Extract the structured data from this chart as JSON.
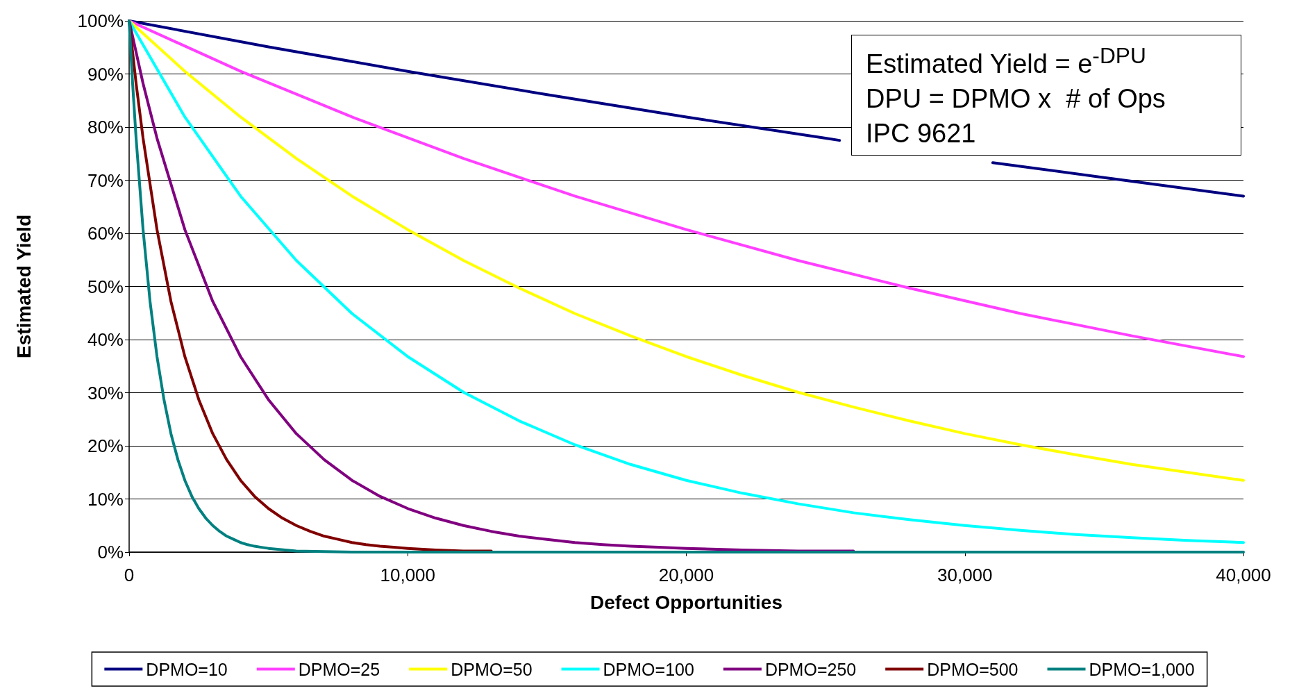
{
  "chart_data": {
    "type": "line",
    "xlabel": "Defect Opportunities",
    "ylabel": "Estimated Yield",
    "xlim": [
      0,
      40000
    ],
    "ylim": [
      0,
      100
    ],
    "xticks": [
      0,
      {
        "value": 10000,
        "label": "10,000"
      },
      {
        "value": 20000,
        "label": "20,000"
      },
      {
        "value": 30000,
        "label": "30,000"
      },
      {
        "value": 40000,
        "label": "40,000"
      }
    ],
    "yticks": [
      {
        "value": 0,
        "label": "0%"
      },
      {
        "value": 10,
        "label": "10%"
      },
      {
        "value": 20,
        "label": "20%"
      },
      {
        "value": 30,
        "label": "30%"
      },
      {
        "value": 40,
        "label": "40%"
      },
      {
        "value": 50,
        "label": "50%"
      },
      {
        "value": 60,
        "label": "60%"
      },
      {
        "value": 70,
        "label": "70%"
      },
      {
        "value": 80,
        "label": "80%"
      },
      {
        "value": 90,
        "label": "90%"
      },
      {
        "value": 100,
        "label": "100%"
      }
    ],
    "grid": "y",
    "legend": "bottom",
    "marker": "none",
    "annotations": [
      "Estimated Yield = e$^{-DPU}$",
      "DPU = DPMO x  # of Ops",
      "IPC 9621"
    ],
    "series": [
      {
        "name": "DPMO=10",
        "color": "#000080",
        "x": [
          0,
          5000,
          10000,
          15000,
          20000,
          25000,
          25500,
          28000,
          31000,
          35000,
          40000
        ],
        "values": [
          100,
          95.1,
          90.5,
          86.1,
          81.9,
          77.9,
          77.5,
          null,
          73.3,
          70.5,
          67.0
        ]
      },
      {
        "name": "DPMO=25",
        "color": "#ff40ff",
        "x": [
          0,
          4000,
          8000,
          12000,
          16000,
          20000,
          24000,
          28000,
          32000,
          36000,
          40000
        ],
        "values": [
          100,
          90.5,
          81.9,
          74.1,
          67.0,
          60.7,
          54.9,
          49.7,
          44.9,
          40.7,
          36.8
        ]
      },
      {
        "name": "DPMO=50",
        "color": "#ffff00",
        "x": [
          0,
          2000,
          4000,
          6000,
          8000,
          10000,
          12000,
          14000,
          16000,
          18000,
          20000,
          22000,
          24000,
          26000,
          28000,
          30000,
          32000,
          34000,
          36000,
          38000,
          40000
        ],
        "values": [
          100,
          90.5,
          81.9,
          74.1,
          67.0,
          60.7,
          54.9,
          49.7,
          44.9,
          40.7,
          36.8,
          33.3,
          30.1,
          27.3,
          24.7,
          22.3,
          20.2,
          18.3,
          16.5,
          15.0,
          13.5
        ]
      },
      {
        "name": "DPMO=100",
        "color": "#00ffff",
        "x": [
          0,
          2000,
          4000,
          6000,
          8000,
          10000,
          12000,
          14000,
          16000,
          18000,
          20000,
          22000,
          24000,
          26000,
          28000,
          30000,
          32000,
          34000,
          36000,
          38000,
          40000
        ],
        "values": [
          100,
          81.9,
          67.0,
          54.9,
          44.9,
          36.8,
          30.1,
          24.7,
          20.2,
          16.5,
          13.5,
          11.1,
          9.1,
          7.4,
          6.1,
          5.0,
          4.1,
          3.3,
          2.7,
          2.2,
          1.8
        ]
      },
      {
        "name": "DPMO=250",
        "color": "#800080",
        "x": [
          0,
          500,
          1000,
          2000,
          3000,
          4000,
          5000,
          6000,
          7000,
          8000,
          9000,
          10000,
          11000,
          12000,
          13000,
          14000,
          15000,
          16000,
          17000,
          18000,
          19000,
          20000,
          22000,
          24000,
          26000
        ],
        "values": [
          100,
          88.2,
          77.9,
          60.7,
          47.2,
          36.8,
          28.7,
          22.3,
          17.4,
          13.5,
          10.5,
          8.2,
          6.4,
          5.0,
          3.9,
          3.0,
          2.4,
          1.8,
          1.4,
          1.1,
          0.9,
          0.7,
          0.4,
          0.2,
          0.2
        ]
      },
      {
        "name": "DPMO=500",
        "color": "#800000",
        "x": [
          0,
          250,
          500,
          1000,
          1500,
          2000,
          2500,
          3000,
          3500,
          4000,
          4500,
          5000,
          5500,
          6000,
          6500,
          7000,
          7500,
          8000,
          8500,
          9000,
          9500,
          10000,
          11000,
          12000,
          13000
        ],
        "values": [
          100,
          88.2,
          77.9,
          60.7,
          47.2,
          36.8,
          28.7,
          22.3,
          17.4,
          13.5,
          10.5,
          8.2,
          6.4,
          5.0,
          3.9,
          3.0,
          2.4,
          1.8,
          1.4,
          1.1,
          0.9,
          0.7,
          0.4,
          0.2,
          0.2
        ]
      },
      {
        "name": "DPMO=1,000",
        "color": "#008080",
        "x": [
          0,
          125,
          250,
          500,
          750,
          1000,
          1250,
          1500,
          1750,
          2000,
          2250,
          2500,
          2750,
          3000,
          3250,
          3500,
          3750,
          4000,
          4250,
          4500,
          4750,
          5000,
          6000,
          7000,
          8000,
          20000,
          30000,
          40000
        ],
        "values": [
          100,
          88.2,
          77.9,
          60.7,
          47.2,
          36.8,
          28.7,
          22.3,
          17.4,
          13.5,
          10.5,
          8.2,
          6.4,
          5.0,
          3.9,
          3.0,
          2.4,
          1.8,
          1.4,
          1.1,
          0.9,
          0.7,
          0.2,
          0.1,
          0,
          0,
          0,
          0
        ]
      }
    ]
  }
}
